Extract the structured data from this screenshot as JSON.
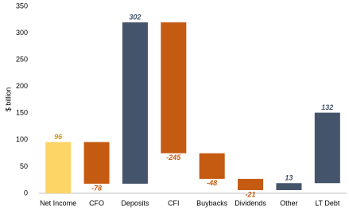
{
  "chart_data": {
    "type": "waterfall",
    "y_label": "$ billion",
    "categories": [
      "Net Income",
      "CFO",
      "Deposits",
      "CFI",
      "Buybacks",
      "Dividends",
      "Other",
      "LT Debt"
    ],
    "values": [
      96,
      -78,
      302,
      -245,
      -48,
      -21,
      13,
      132
    ],
    "colors": [
      "#fdd466",
      "#c55a11",
      "#44546a",
      "#c55a11",
      "#c55a11",
      "#c55a11",
      "#44546a",
      "#44546a"
    ],
    "label_colors": [
      "#c99a16",
      "#c55a11",
      "#44546a",
      "#c55a11",
      "#c55a11",
      "#c55a11",
      "#44546a",
      "#44546a"
    ],
    "ylim": [
      0,
      350
    ],
    "yticks": [
      0,
      50,
      100,
      150,
      200,
      250,
      300,
      350
    ],
    "grid": false
  }
}
